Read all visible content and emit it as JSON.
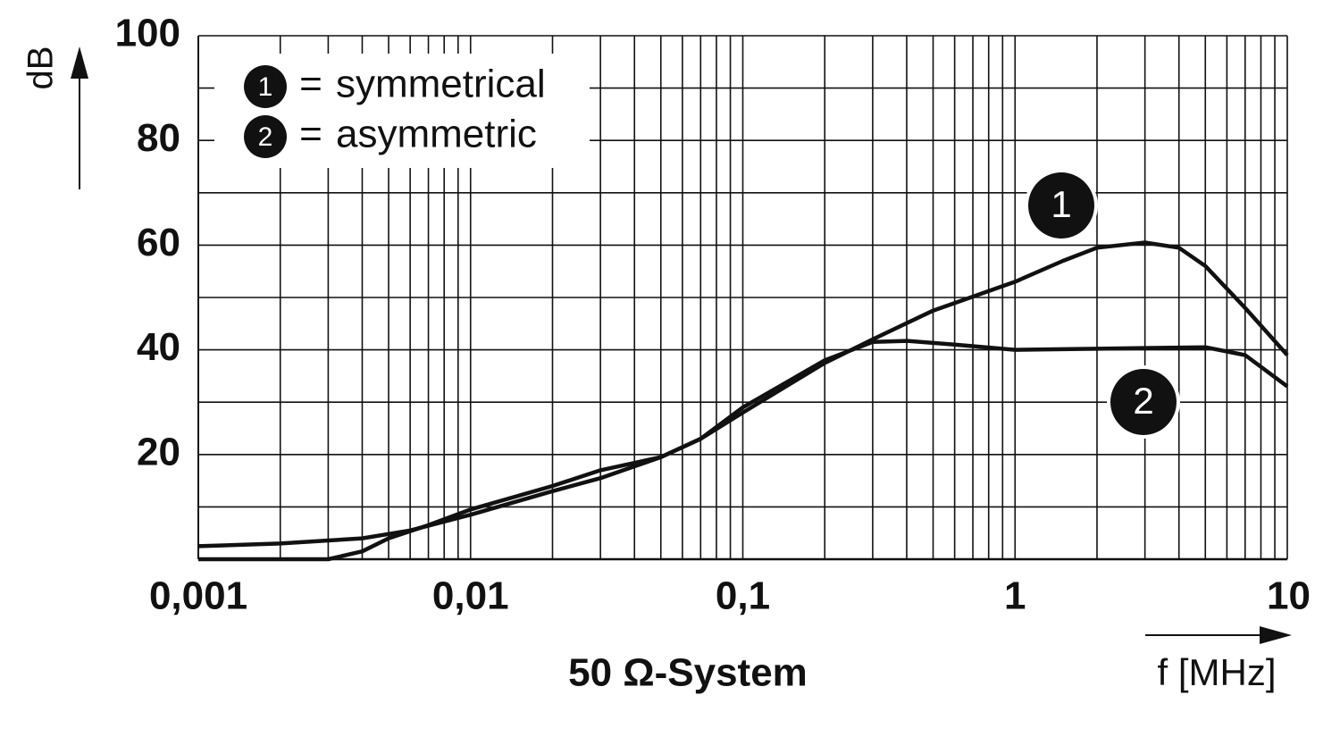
{
  "chart_data": {
    "type": "line",
    "subtitle": "50 Ω-System",
    "x_label": "f [MHz]",
    "y_label": "dB",
    "xscale": "log",
    "grid": true,
    "xlim": [
      0.001,
      10
    ],
    "ylim": [
      0,
      100
    ],
    "xticks": [
      {
        "value": 0.001,
        "label": "0,001"
      },
      {
        "value": 0.01,
        "label": "0,01"
      },
      {
        "value": 0.1,
        "label": "0,1"
      },
      1,
      10
    ],
    "yticks": [
      20,
      40,
      60,
      80,
      100
    ],
    "legend_position": "upper left",
    "legend_separator": "=",
    "series": [
      {
        "name": "symmetrical",
        "label": "1",
        "color": "#111111",
        "x": [
          0.001,
          0.002,
          0.004,
          0.006,
          0.01,
          0.02,
          0.03,
          0.05,
          0.07,
          0.1,
          0.2,
          0.3,
          0.5,
          1,
          1.5,
          2,
          3,
          4,
          5,
          7,
          10
        ],
        "values": [
          2.5,
          3,
          4,
          5.5,
          8.5,
          13,
          15.5,
          19.5,
          23,
          28,
          37.5,
          42,
          47.5,
          53,
          57,
          59.5,
          60.5,
          59.5,
          56,
          48,
          39
        ]
      },
      {
        "name": "asymmetric",
        "label": "2",
        "color": "#111111",
        "x": [
          0.001,
          0.003,
          0.004,
          0.005,
          0.007,
          0.01,
          0.02,
          0.03,
          0.05,
          0.07,
          0.1,
          0.2,
          0.3,
          0.4,
          0.6,
          1,
          2,
          5,
          7,
          10
        ],
        "values": [
          0,
          0,
          1.5,
          4,
          6.5,
          9.5,
          14,
          17,
          19.5,
          23,
          29,
          38,
          41.5,
          41.7,
          41,
          40,
          40.2,
          40.5,
          39,
          33
        ]
      }
    ]
  }
}
